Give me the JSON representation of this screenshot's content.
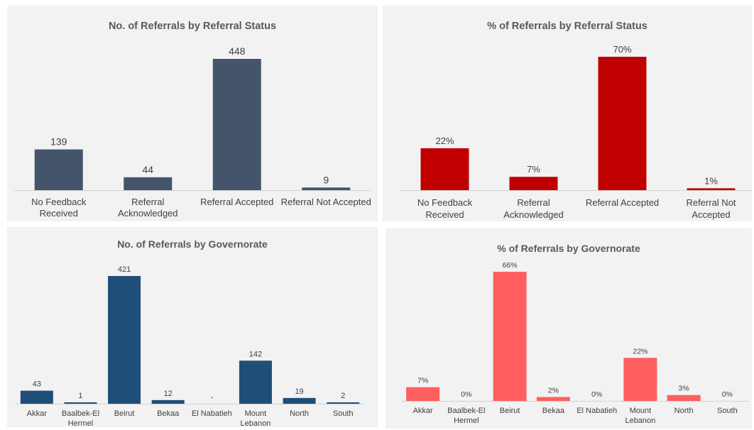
{
  "chart_data": [
    {
      "type": "bar",
      "title": "No. of Referrals by Referral Status",
      "categories": [
        "No Feedback Received",
        "Referral Acknowledged",
        "Referral Accepted",
        "Referral Not Accepted"
      ],
      "category_lines": [
        [
          "No Feedback",
          "Received"
        ],
        [
          "Referral",
          "Acknowledged"
        ],
        [
          "Referral Accepted"
        ],
        [
          "Referral Not Accepted"
        ]
      ],
      "values": [
        139,
        44,
        448,
        9
      ],
      "labels": [
        "139",
        "44",
        "448",
        "9"
      ],
      "color": "#44546a",
      "grid": false,
      "legend": false
    },
    {
      "type": "bar",
      "title": "% of Referrals by Referral Status",
      "categories": [
        "No Feedback Received",
        "Referral Acknowledged",
        "Referral Accepted",
        "Referral Not Accepted"
      ],
      "category_lines": [
        [
          "No Feedback",
          "Received"
        ],
        [
          "Referral",
          "Acknowledged"
        ],
        [
          "Referral Accepted"
        ],
        [
          "Referral Not",
          "Accepted"
        ]
      ],
      "values": [
        22,
        7,
        70,
        1
      ],
      "labels": [
        "22%",
        "7%",
        "70%",
        "1%"
      ],
      "color": "#c00000",
      "grid": false,
      "legend": false
    },
    {
      "type": "bar",
      "title": "No. of Referrals by Governorate",
      "categories": [
        "Akkar",
        "Baalbek-El Hermel",
        "Beirut",
        "Bekaa",
        "El Nabatieh",
        "Mount Lebanon",
        "North",
        "South"
      ],
      "category_lines": [
        [
          "Akkar"
        ],
        [
          "Baalbek-El",
          "Hermel"
        ],
        [
          "Beirut"
        ],
        [
          "Bekaa"
        ],
        [
          "El Nabatieh"
        ],
        [
          "Mount",
          "Lebanon"
        ],
        [
          "North"
        ],
        [
          "South"
        ]
      ],
      "values": [
        43,
        1,
        421,
        12,
        0,
        142,
        19,
        2
      ],
      "labels": [
        "43",
        "1",
        "421",
        "12",
        "-",
        "142",
        "19",
        "2"
      ],
      "color": "#1f4e79",
      "grid": false,
      "legend": false
    },
    {
      "type": "bar",
      "title": "% of Referrals by Governorate",
      "categories": [
        "Akkar",
        "Baalbek-El Hermel",
        "Beirut",
        "Bekaa",
        "El Nabatieh",
        "Mount Lebanon",
        "North",
        "South"
      ],
      "category_lines": [
        [
          "Akkar"
        ],
        [
          "Baalbek-El",
          "Hermel"
        ],
        [
          "Beirut"
        ],
        [
          "Bekaa"
        ],
        [
          "El Nabatieh"
        ],
        [
          "Mount",
          "Lebanon"
        ],
        [
          "North"
        ],
        [
          "South"
        ]
      ],
      "values": [
        7,
        0,
        66,
        2,
        0,
        22,
        3,
        0
      ],
      "labels": [
        "7%",
        "0%",
        "66%",
        "2%",
        "0%",
        "22%",
        "3%",
        "0%"
      ],
      "color": "#ff5f5f",
      "grid": false,
      "legend": false
    }
  ]
}
